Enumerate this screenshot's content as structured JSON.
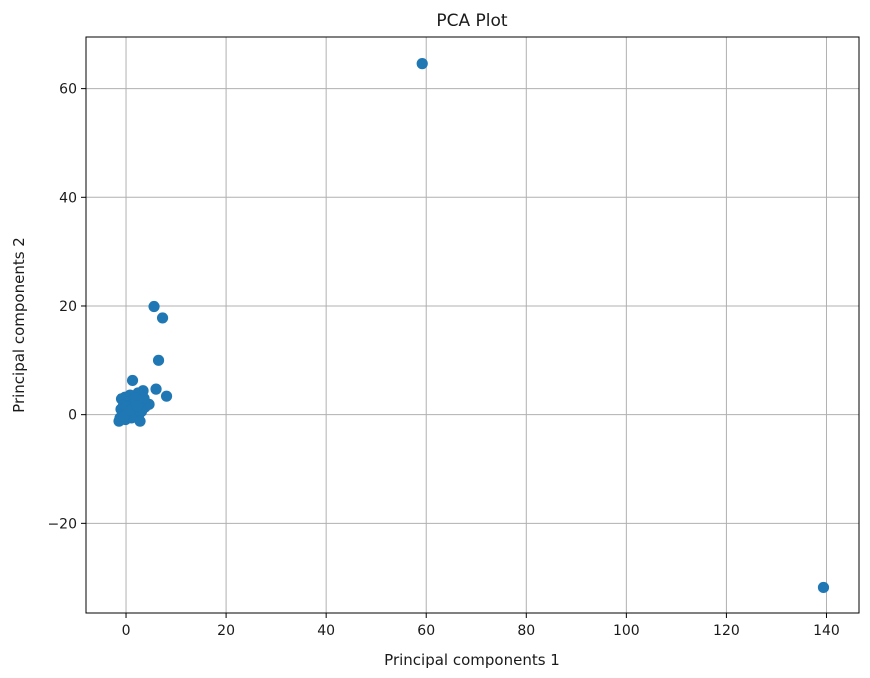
{
  "chart_data": {
    "type": "scatter",
    "title": "PCA Plot",
    "xlabel": "Principal components 1",
    "ylabel": "Principal components 2",
    "xlim": [
      -8,
      146.5
    ],
    "ylim": [
      -36.5,
      69.5
    ],
    "xticks": [
      0,
      20,
      40,
      60,
      80,
      100,
      120,
      140
    ],
    "yticks": [
      -20,
      0,
      20,
      40,
      60
    ],
    "ytick_labels": [
      "−20",
      "0",
      "20",
      "40",
      "60"
    ],
    "grid": true,
    "marker_color": "#1f77b4",
    "points": [
      {
        "x": 59.2,
        "y": 64.6
      },
      {
        "x": 139.4,
        "y": -31.8
      },
      {
        "x": 5.6,
        "y": 19.9
      },
      {
        "x": 7.3,
        "y": 17.8
      },
      {
        "x": 6.5,
        "y": 10.0
      },
      {
        "x": 1.3,
        "y": 6.3
      },
      {
        "x": 6.0,
        "y": 4.7
      },
      {
        "x": 8.1,
        "y": 3.4
      },
      {
        "x": 3.4,
        "y": 4.4
      },
      {
        "x": 2.4,
        "y": 4.0
      },
      {
        "x": 4.6,
        "y": 1.9
      },
      {
        "x": 3.8,
        "y": 1.4
      },
      {
        "x": 1.9,
        "y": 2.6
      },
      {
        "x": 0.8,
        "y": 3.6
      },
      {
        "x": -0.2,
        "y": 3.2
      },
      {
        "x": -0.9,
        "y": 2.9
      },
      {
        "x": 0.4,
        "y": 2.4
      },
      {
        "x": 1.4,
        "y": 1.9
      },
      {
        "x": 2.9,
        "y": 2.2
      },
      {
        "x": -0.5,
        "y": 1.7
      },
      {
        "x": 0.9,
        "y": 1.2
      },
      {
        "x": 2.0,
        "y": 0.9
      },
      {
        "x": 3.1,
        "y": 0.6
      },
      {
        "x": -1.0,
        "y": 1.0
      },
      {
        "x": 0.2,
        "y": 0.5
      },
      {
        "x": 1.6,
        "y": 0.2
      },
      {
        "x": -0.7,
        "y": 0.0
      },
      {
        "x": 0.6,
        "y": -0.3
      },
      {
        "x": 2.5,
        "y": -0.1
      },
      {
        "x": -1.2,
        "y": -0.6
      },
      {
        "x": -0.1,
        "y": -0.9
      },
      {
        "x": 1.1,
        "y": -0.6
      },
      {
        "x": 2.8,
        "y": -1.2
      },
      {
        "x": -1.4,
        "y": -1.2
      },
      {
        "x": 0.1,
        "y": 1.5
      },
      {
        "x": 1.8,
        "y": 3.1
      },
      {
        "x": 3.6,
        "y": 3.0
      },
      {
        "x": -0.4,
        "y": -0.3
      },
      {
        "x": 0.7,
        "y": 0.8
      },
      {
        "x": 2.2,
        "y": 1.6
      }
    ]
  }
}
